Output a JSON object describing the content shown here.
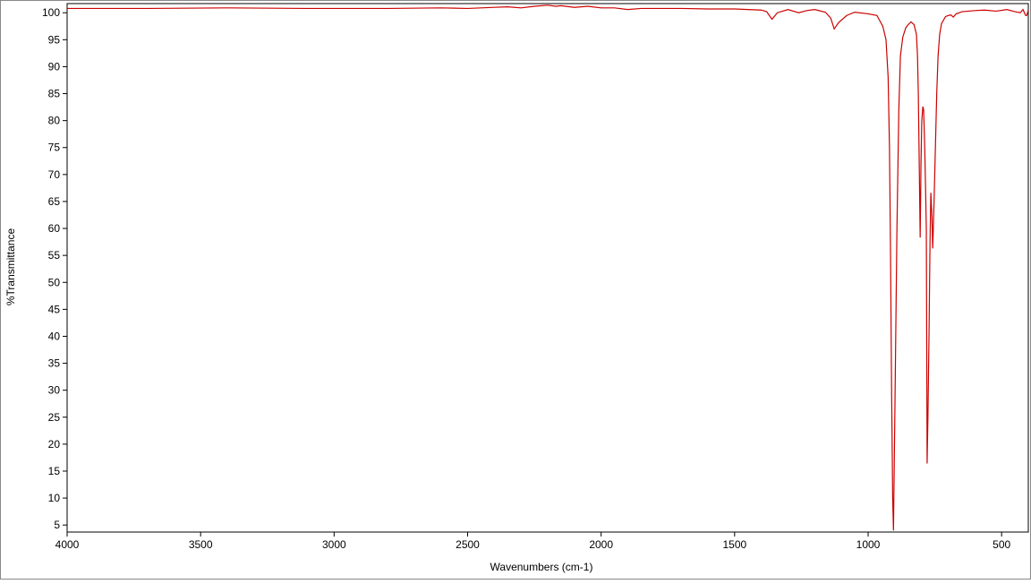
{
  "chart_data": {
    "type": "line",
    "xlabel": "Wavenumbers (cm-1)",
    "ylabel": "%Transmittance",
    "color": "#cc0000",
    "xlim": [
      4000,
      400
    ],
    "ylim": [
      3.7,
      101.7
    ],
    "xticks": [
      4000,
      3500,
      3000,
      2500,
      2000,
      1500,
      1000,
      500
    ],
    "yticks": [
      5,
      10,
      15,
      20,
      25,
      30,
      35,
      40,
      45,
      50,
      55,
      60,
      65,
      70,
      75,
      80,
      85,
      90,
      95,
      100
    ],
    "x": [
      4000,
      3700,
      3400,
      3100,
      2800,
      2600,
      2500,
      2400,
      2350,
      2300,
      2250,
      2200,
      2170,
      2150,
      2100,
      2050,
      2000,
      1950,
      1900,
      1850,
      1800,
      1700,
      1600,
      1500,
      1400,
      1380,
      1360,
      1340,
      1300,
      1260,
      1230,
      1200,
      1160,
      1140,
      1127,
      1110,
      1080,
      1050,
      1000,
      967,
      945,
      933,
      925,
      920,
      916,
      912,
      908,
      905,
      900,
      892,
      885,
      879,
      870,
      859,
      850,
      839,
      828,
      819,
      815,
      812,
      808,
      805,
      802,
      799,
      795,
      792,
      788,
      785,
      782,
      779,
      776,
      772,
      768,
      765,
      761,
      758,
      753,
      748,
      743,
      738,
      732,
      725,
      710,
      698,
      690,
      681,
      670,
      648,
      600,
      564,
      520,
      480,
      450,
      430,
      420,
      410,
      406,
      400
    ],
    "values": [
      100.8,
      100.8,
      100.9,
      100.8,
      100.8,
      100.9,
      100.8,
      101.0,
      101.1,
      100.9,
      101.2,
      101.4,
      101.2,
      101.3,
      101.0,
      101.2,
      100.9,
      100.9,
      100.6,
      100.8,
      100.8,
      100.8,
      100.7,
      100.7,
      100.5,
      100.2,
      98.8,
      100.0,
      100.6,
      100.0,
      100.4,
      100.6,
      100.1,
      99.0,
      97.0,
      98.2,
      99.5,
      100.1,
      99.8,
      99.5,
      97.5,
      95.0,
      88.0,
      75.0,
      55.0,
      30.0,
      10.0,
      4.0,
      25.0,
      60.0,
      82.0,
      92.0,
      95.5,
      97.2,
      97.8,
      98.3,
      97.8,
      96.0,
      92.0,
      85.0,
      70.0,
      58.3,
      72.0,
      80.0,
      82.6,
      82.0,
      75.0,
      68.0,
      60.0,
      16.4,
      25.0,
      40.0,
      58.0,
      66.6,
      62.0,
      56.3,
      65.0,
      75.0,
      85.0,
      92.0,
      96.0,
      98.0,
      99.3,
      99.5,
      99.6,
      99.2,
      99.8,
      100.2,
      100.4,
      100.5,
      100.3,
      100.6,
      100.2,
      100.0,
      100.6,
      99.5,
      99.5,
      100.5
    ]
  }
}
